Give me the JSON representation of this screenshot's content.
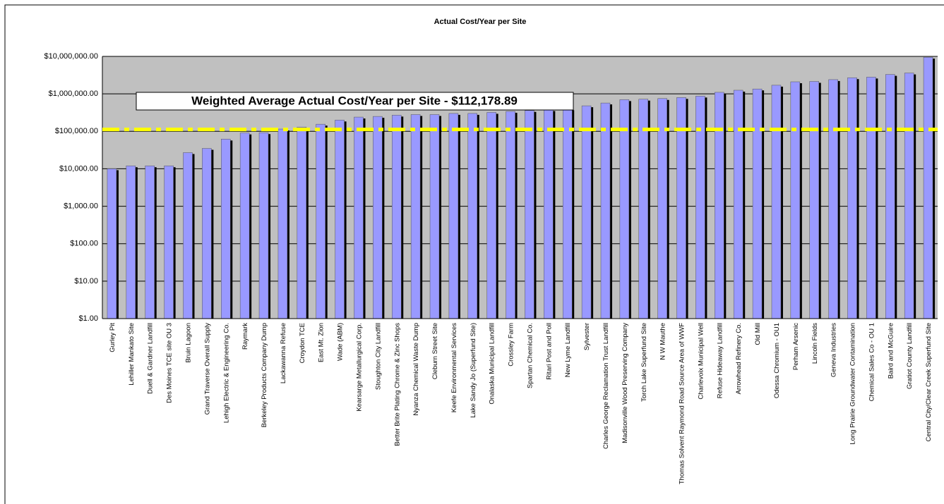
{
  "chart_data": {
    "type": "bar",
    "title": "Actual Cost/Year per Site",
    "categories": [
      "Gurley Pit",
      "Lehiller Mankato Site",
      "Duell & Gardner Landfill",
      "Des Moines TCE site OU 3",
      "Bruin Lagoon",
      "Grand Traverse Overall Supply",
      "Lehigh Electric & Engineering Co.",
      "Raymark",
      "Berkeley Products Company Dump",
      "Lackawanna Refuse",
      "Croydon TCE",
      "East Mt. Zion",
      "Wade (ABM)",
      "Kearsarge Metallurgical Corp.",
      "Stoughton City Landfill",
      "Better Brite Plating Chrome & Zinc Shops",
      "Nyanza Chemical Waste Dump",
      "Cleburn Street Site",
      "Keefe Environmental Services",
      "Lake Sandy Jo (Superfund Site)",
      "Onalaska Municipal Landfill",
      "Crossley Farm",
      "Spartan Chemical Co.",
      "Ritari Post and Poll",
      "New Lyme Landfill",
      "Sylvester",
      "Charles George Reclamation Trust Landfill",
      "Madisonville Wood Preserving Company",
      "Torch Lake Superfund Site",
      "N W Mauthe",
      "Thomas Solvent Raymond Road Source Area of WWF",
      "Charlevoix Municipal Well",
      "Refuse Hideaway Landfill",
      "Arrowhead Refinery Co.",
      "Old Mill",
      "Odessa Chromium - OU1",
      "Perham Arsenic",
      "Lincoln Fields",
      "Geneva Industries",
      "Long Prairie Groundwater Contamination",
      "Chemical Sales Co - OU 1",
      "Baird and McGuire",
      "Gratiot County Landfill",
      "Central City/Clear Creek Superfund Site"
    ],
    "values": [
      10000,
      12000,
      12000,
      12000,
      27000,
      35000,
      62000,
      90000,
      92000,
      115000,
      130000,
      155000,
      200000,
      240000,
      250000,
      270000,
      280000,
      280000,
      300000,
      300000,
      320000,
      340000,
      360000,
      380000,
      400000,
      480000,
      570000,
      700000,
      720000,
      750000,
      800000,
      870000,
      1100000,
      1250000,
      1350000,
      1700000,
      2100000,
      2150000,
      2400000,
      2700000,
      2800000,
      3300000,
      3600000,
      9500000
    ],
    "color": "#9999ff",
    "log_scale": true,
    "ylim": [
      1,
      10000000
    ],
    "yticks": [
      {
        "value": 1,
        "label": "$1.00"
      },
      {
        "value": 10,
        "label": "$10.00"
      },
      {
        "value": 100,
        "label": "$100.00"
      },
      {
        "value": 1000,
        "label": "$1,000.00"
      },
      {
        "value": 10000,
        "label": "$10,000.00"
      },
      {
        "value": 100000,
        "label": "$100,000.00"
      },
      {
        "value": 1000000,
        "label": "$1,000,000.00"
      },
      {
        "value": 10000000,
        "label": "$10,000,000.00"
      }
    ],
    "grid": true,
    "reference_line": {
      "value": 112178.89,
      "label": "Weighted Average Actual Cost/Year per Site - $112,178.89",
      "color": "#ffff00"
    }
  }
}
